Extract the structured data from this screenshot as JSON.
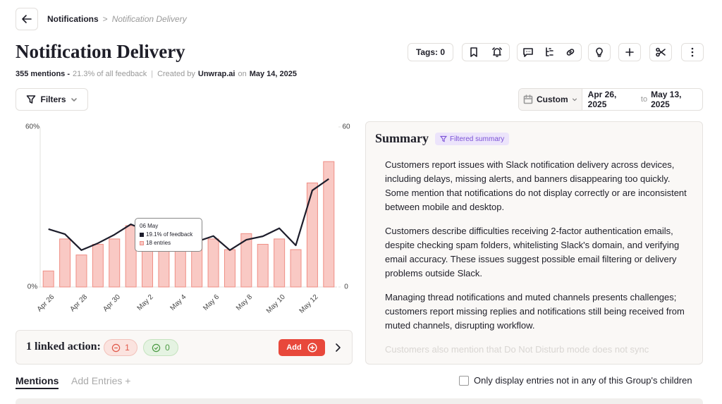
{
  "breadcrumb": {
    "parent": "Notifications",
    "separator": ">",
    "current": "Notification Delivery"
  },
  "header": {
    "title": "Notification Delivery",
    "mentions": "355 mentions -",
    "share": "21.3% of all feedback",
    "divider": "|",
    "created_by": "Created by",
    "author": "Unwrap.ai",
    "on": "on",
    "date": "May 14, 2025"
  },
  "toolbar": {
    "tags": "Tags: 0"
  },
  "filters": {
    "label": "Filters"
  },
  "date_range": {
    "mode": "Custom",
    "start": "Apr 26, 2025",
    "to": "to",
    "end": "May 13, 2025"
  },
  "chart_data": {
    "type": "bar",
    "categories": [
      "Apr 26",
      null,
      "Apr 28",
      null,
      "Apr 30",
      null,
      "May 2",
      null,
      "May 4",
      null,
      "May 6",
      null,
      "May 8",
      null,
      "May 10",
      null,
      "May 12",
      null
    ],
    "series": [
      {
        "type": "bar",
        "axis": "y2",
        "color": "#f9c9c4",
        "stroke": "#ef8e85",
        "values": [
          6,
          18,
          12,
          16,
          18,
          23,
          14,
          16,
          16,
          18,
          18,
          14,
          20,
          16,
          18,
          14,
          39,
          47
        ]
      },
      {
        "type": "line",
        "color": "#1d1d2b",
        "values": [
          21.7,
          19.8,
          13.8,
          16.4,
          19.6,
          23.5,
          20.9,
          19,
          19,
          17,
          19.1,
          13.8,
          17.7,
          19,
          22,
          15.6,
          36.2,
          40.5
        ]
      }
    ],
    "ylim": [
      0,
      60
    ],
    "yticks": [
      {
        "value": 0,
        "label": "0%"
      },
      {
        "value": 60,
        "label": "60%"
      }
    ],
    "y2lim": [
      0,
      60
    ],
    "y2ticks": [
      0,
      60
    ],
    "grid": false,
    "tooltip": {
      "title": "06 May",
      "lines": [
        "19.1% of feedback",
        "18 entries"
      ]
    }
  },
  "linked_actions": {
    "label": "1 linked action:",
    "negative": 1,
    "positive": 0,
    "add": "Add"
  },
  "summary": {
    "title": "Summary",
    "badge": "Filtered summary",
    "paragraphs": [
      "Customers report issues with Slack notification delivery across devices, including delays, missing alerts, and banners disappearing too quickly. Some mention that notifications do not display correctly or are inconsistent between mobile and desktop.",
      "Customers describe difficulties receiving 2-factor authentication emails, despite checking spam folders, whitelisting Slack's domain, and verifying email accuracy. These issues suggest possible email filtering or delivery problems outside Slack.",
      "Managing thread notifications and muted channels presents challenges; customers report missing replies and notifications still being received from muted channels, disrupting workflow.",
      "Customers also mention that Do Not Disturb mode does not sync"
    ]
  },
  "tabs": {
    "mentions": "Mentions",
    "add_entries": "Add Entries +"
  },
  "option": {
    "label": "Only display entries not in any of this Group's children"
  }
}
